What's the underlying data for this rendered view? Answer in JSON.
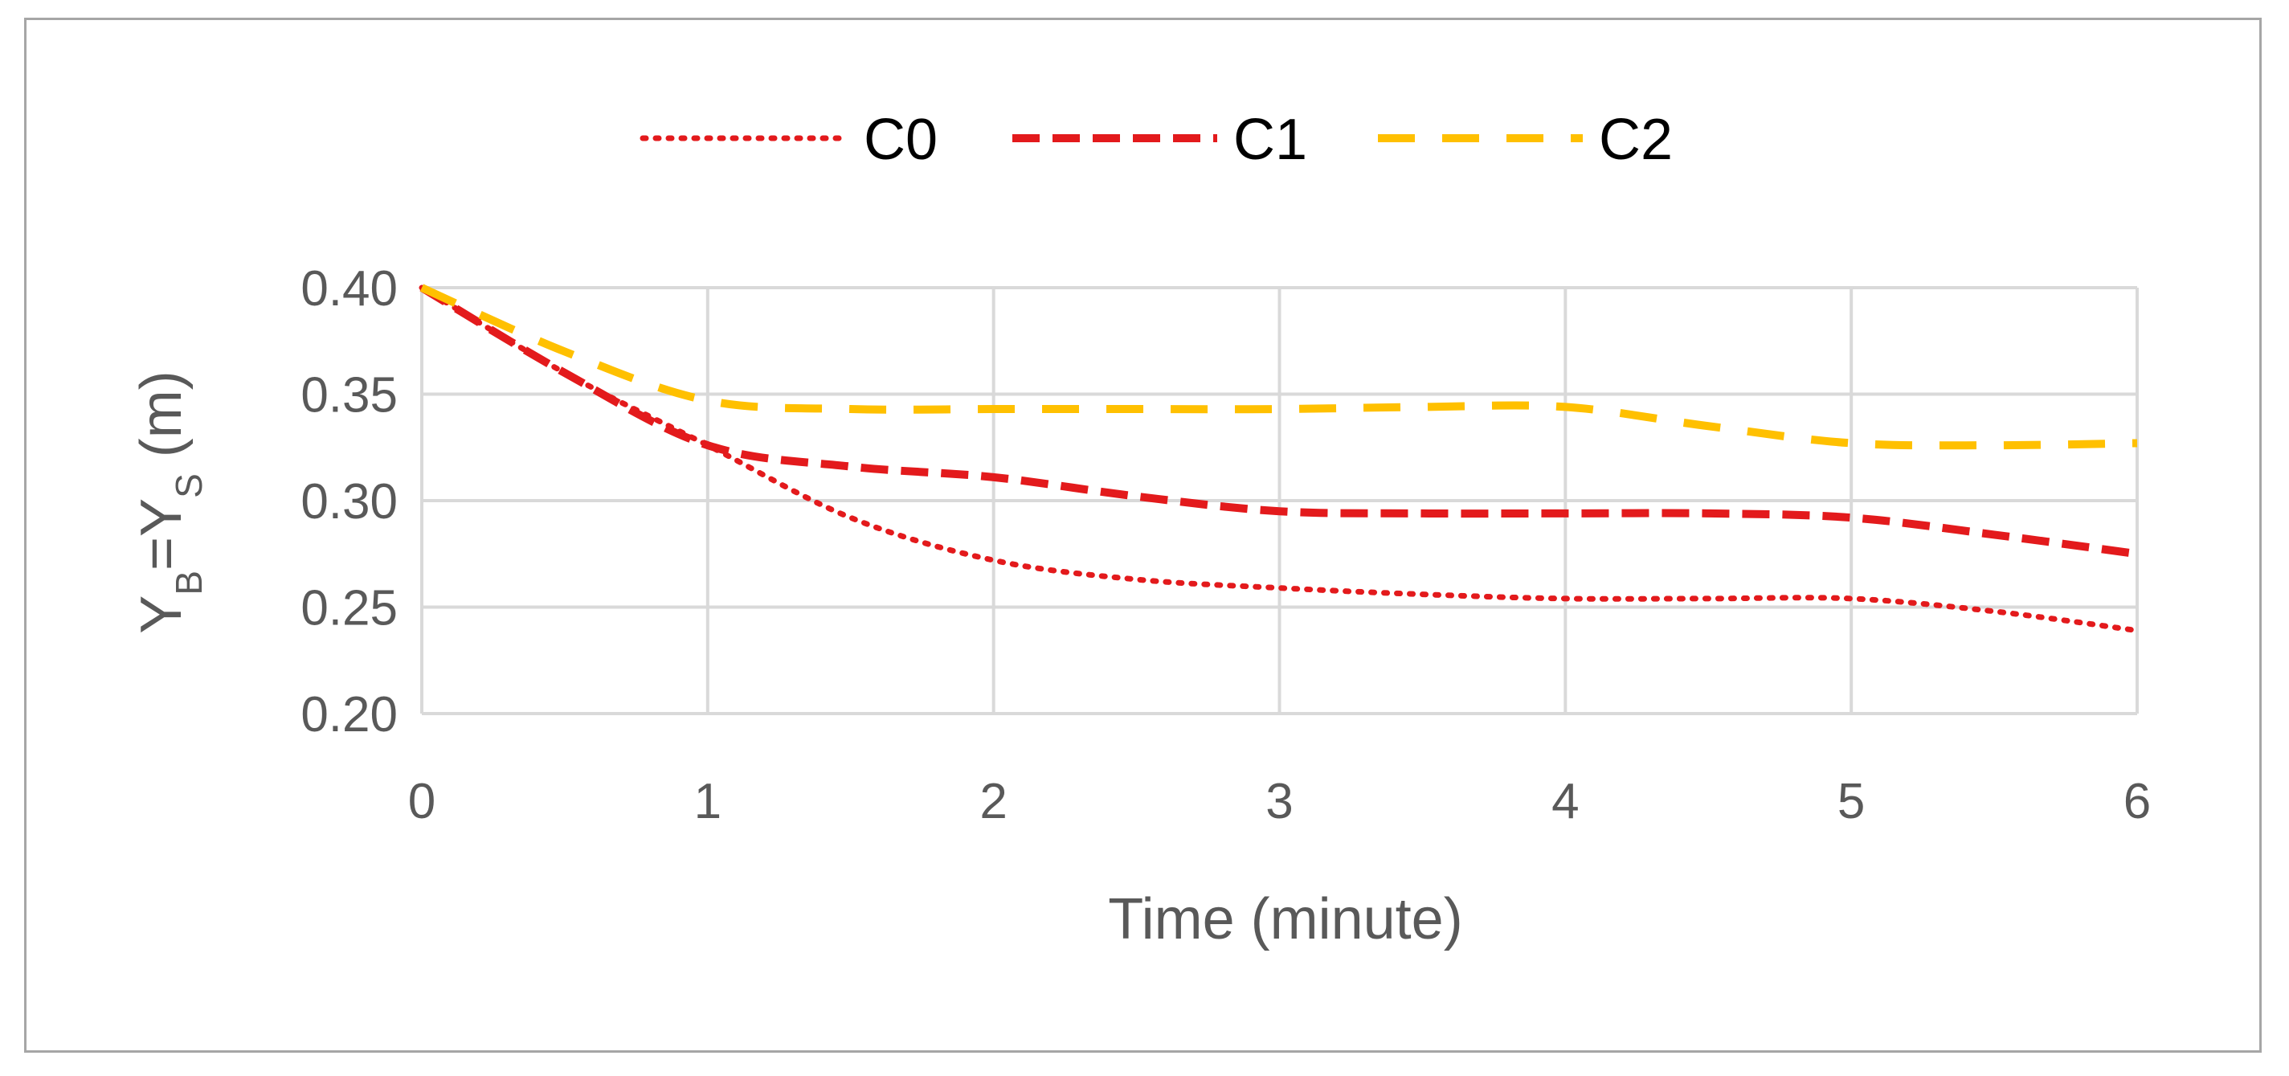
{
  "chart_data": {
    "type": "line",
    "title": "",
    "xlabel": "Time (minute)",
    "ylabel": {
      "parts": [
        "Y",
        "B",
        "=Y",
        "S",
        " (m)"
      ]
    },
    "xlim": [
      0,
      6
    ],
    "ylim": [
      0.2,
      0.4
    ],
    "x_ticks": [
      "0",
      "1",
      "2",
      "3",
      "4",
      "5",
      "6"
    ],
    "y_ticks": [
      "0.40",
      "0.35",
      "0.30",
      "0.25",
      "0.20"
    ],
    "grid": true,
    "legend_position": "top",
    "series": [
      {
        "name": "C0",
        "color": "#e31a1c",
        "style": "dotted",
        "points": [
          [
            0,
            0.4
          ],
          [
            0.5,
            0.36
          ],
          [
            1,
            0.326
          ],
          [
            1.5,
            0.292
          ],
          [
            2,
            0.272
          ],
          [
            2.5,
            0.263
          ],
          [
            3,
            0.259
          ],
          [
            3.5,
            0.256
          ],
          [
            4,
            0.254
          ],
          [
            4.5,
            0.254
          ],
          [
            5,
            0.254
          ],
          [
            5.5,
            0.248
          ],
          [
            6,
            0.239
          ]
        ]
      },
      {
        "name": "C1",
        "color": "#e31a1c",
        "style": "dashed",
        "points": [
          [
            0,
            0.4
          ],
          [
            0.5,
            0.36
          ],
          [
            1,
            0.326
          ],
          [
            1.5,
            0.316
          ],
          [
            2,
            0.311
          ],
          [
            2.5,
            0.302
          ],
          [
            3,
            0.295
          ],
          [
            3.5,
            0.294
          ],
          [
            4,
            0.294
          ],
          [
            4.5,
            0.294
          ],
          [
            5,
            0.292
          ],
          [
            5.5,
            0.284
          ],
          [
            6,
            0.275
          ]
        ]
      },
      {
        "name": "C2",
        "color": "#ffc000",
        "style": "long-dashed",
        "points": [
          [
            0,
            0.4
          ],
          [
            0.5,
            0.37
          ],
          [
            1,
            0.347
          ],
          [
            1.5,
            0.343
          ],
          [
            2,
            0.343
          ],
          [
            2.5,
            0.343
          ],
          [
            3,
            0.343
          ],
          [
            3.5,
            0.344
          ],
          [
            4,
            0.344
          ],
          [
            4.5,
            0.335
          ],
          [
            5,
            0.327
          ],
          [
            5.5,
            0.326
          ],
          [
            6,
            0.327
          ]
        ]
      }
    ]
  }
}
